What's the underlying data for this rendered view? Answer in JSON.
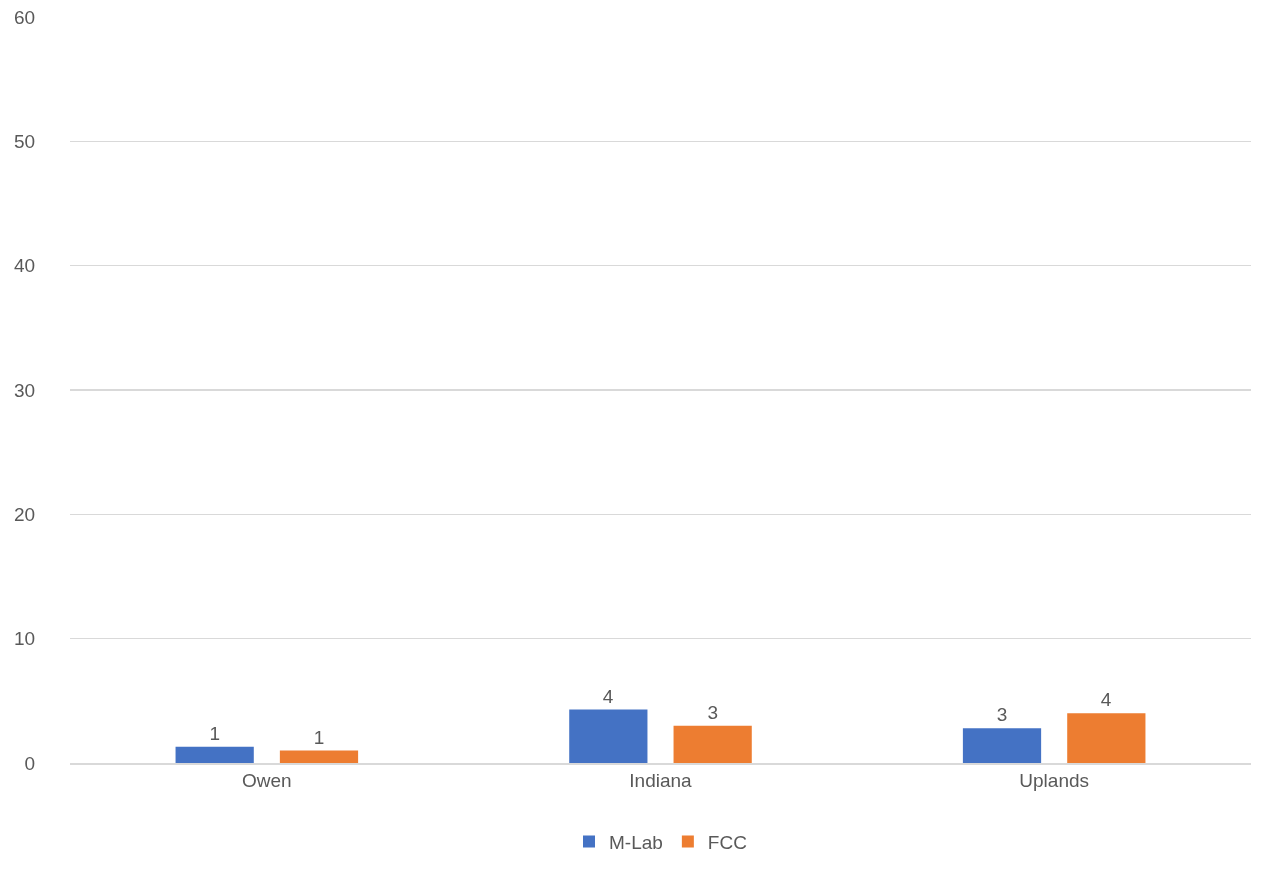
{
  "chart_data": {
    "type": "bar",
    "categories": [
      "Owen",
      "Indiana",
      "Uplands"
    ],
    "series": [
      {
        "name": "M-Lab",
        "color": "#4472c4",
        "values": [
          1.3,
          4.3,
          2.8
        ],
        "value_labels": [
          "1",
          "4",
          "3"
        ]
      },
      {
        "name": "FCC",
        "color": "#ed7d31",
        "values": [
          1.0,
          3.0,
          4.0
        ],
        "value_labels": [
          "1",
          "3",
          "4"
        ]
      }
    ],
    "ylim": [
      0,
      60
    ],
    "yticks": [
      0,
      10,
      20,
      30,
      40,
      50,
      60
    ],
    "grid": "y",
    "legend": "bottom"
  }
}
